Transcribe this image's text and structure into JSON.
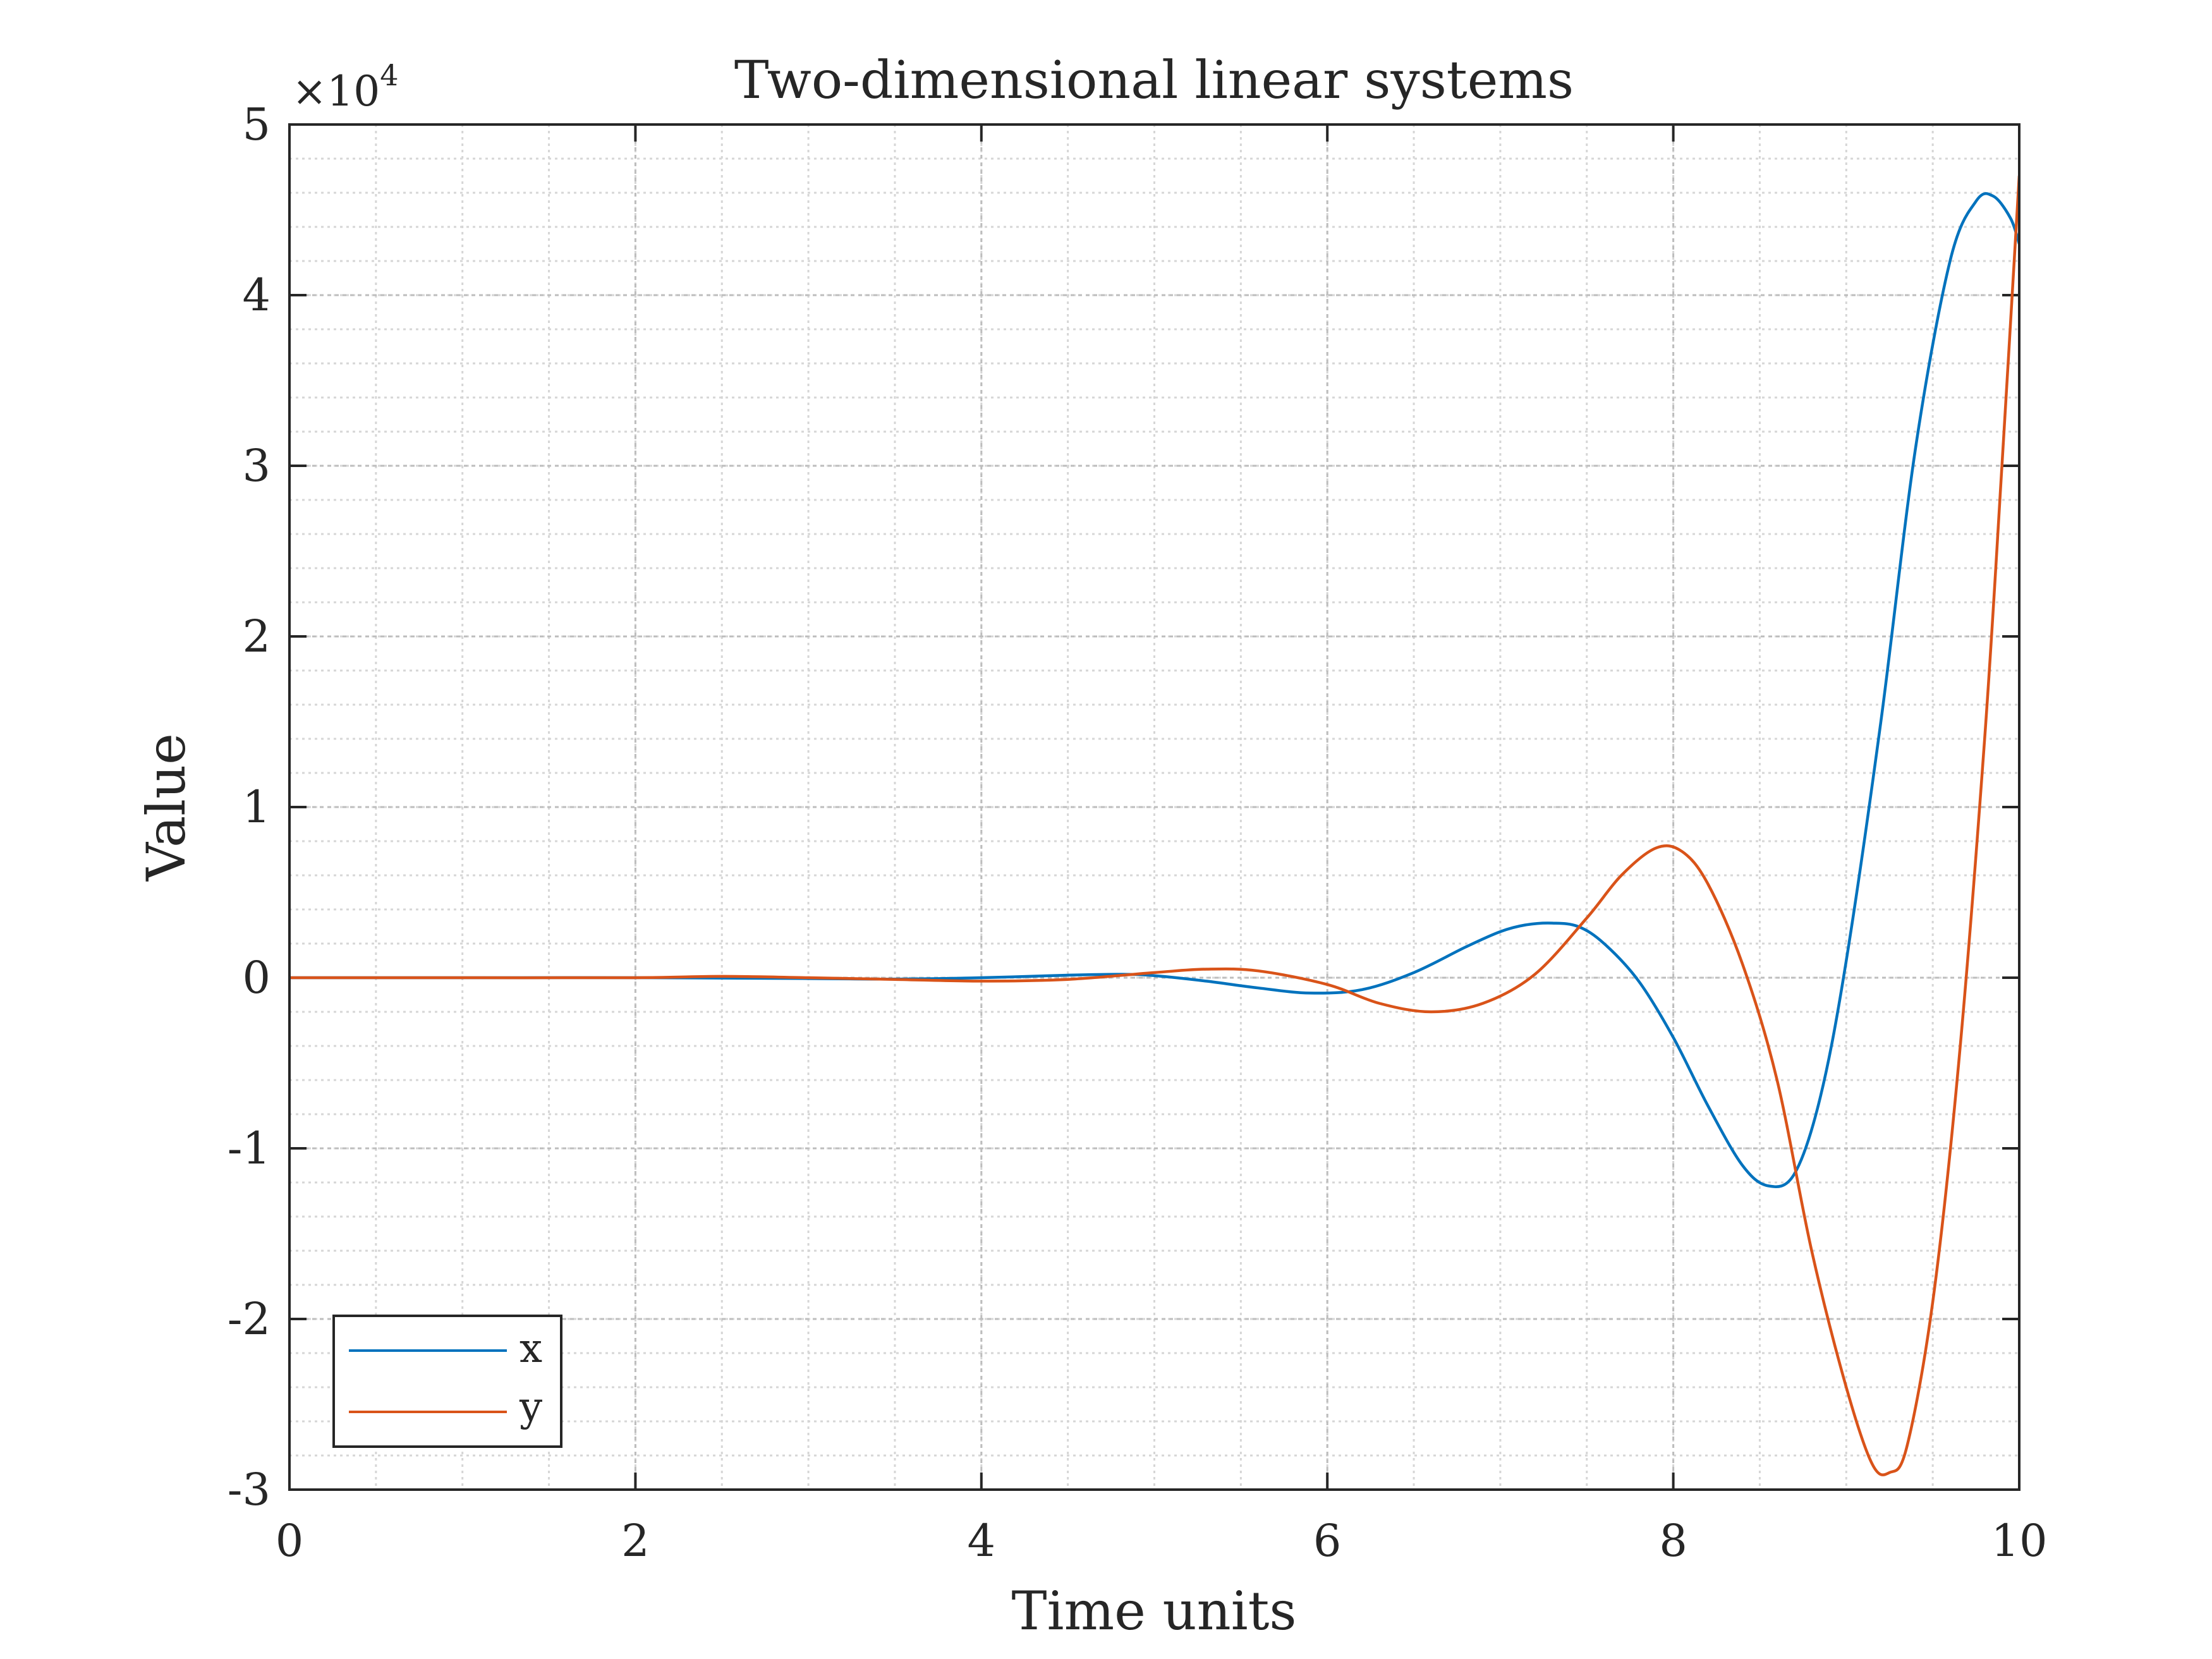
{
  "chart_data": {
    "type": "line",
    "title": "Two-dimensional linear systems",
    "xlabel": "Time units",
    "ylabel": "Value",
    "xlim": [
      0,
      10
    ],
    "ylim": [
      -30000,
      50000
    ],
    "y_multiplier": {
      "base": "×10",
      "exponent": "4"
    },
    "x_ticks": [
      0,
      2,
      4,
      6,
      8,
      10
    ],
    "x_tick_labels": [
      "0",
      "2",
      "4",
      "6",
      "8",
      "10"
    ],
    "y_ticks": [
      -30000,
      -20000,
      -10000,
      0,
      10000,
      20000,
      30000,
      40000,
      50000
    ],
    "y_tick_labels": [
      "-3",
      "-2",
      "-1",
      "0",
      "1",
      "2",
      "3",
      "4",
      "5"
    ],
    "grid": true,
    "minor_grid": true,
    "legend_position": "bottom-left",
    "series": [
      {
        "name": "x",
        "color": "#0072BD",
        "points": [
          [
            0,
            0
          ],
          [
            1,
            0
          ],
          [
            2,
            0
          ],
          [
            3,
            -50
          ],
          [
            3.5,
            -80
          ],
          [
            4,
            0
          ],
          [
            4.5,
            150
          ],
          [
            4.8,
            200
          ],
          [
            5.0,
            120
          ],
          [
            5.3,
            -200
          ],
          [
            5.6,
            -600
          ],
          [
            5.9,
            -900
          ],
          [
            6.2,
            -700
          ],
          [
            6.5,
            300
          ],
          [
            6.8,
            1800
          ],
          [
            7.0,
            2700
          ],
          [
            7.15,
            3100
          ],
          [
            7.3,
            3200
          ],
          [
            7.45,
            3000
          ],
          [
            7.6,
            2000
          ],
          [
            7.8,
            -200
          ],
          [
            8.0,
            -3500
          ],
          [
            8.2,
            -7500
          ],
          [
            8.4,
            -11000
          ],
          [
            8.55,
            -12200
          ],
          [
            8.7,
            -11500
          ],
          [
            8.85,
            -7000
          ],
          [
            9.0,
            1000
          ],
          [
            9.2,
            15000
          ],
          [
            9.4,
            31000
          ],
          [
            9.6,
            42000
          ],
          [
            9.75,
            45500
          ],
          [
            9.85,
            45800
          ],
          [
            9.95,
            44500
          ],
          [
            10.0,
            43000
          ]
        ]
      },
      {
        "name": "y",
        "color": "#D95319",
        "points": [
          [
            0,
            0
          ],
          [
            1,
            0
          ],
          [
            2,
            0
          ],
          [
            2.5,
            80
          ],
          [
            3,
            0
          ],
          [
            3.5,
            -100
          ],
          [
            4,
            -200
          ],
          [
            4.5,
            -100
          ],
          [
            5.0,
            300
          ],
          [
            5.3,
            500
          ],
          [
            5.6,
            400
          ],
          [
            6.0,
            -400
          ],
          [
            6.3,
            -1500
          ],
          [
            6.6,
            -2000
          ],
          [
            6.9,
            -1500
          ],
          [
            7.2,
            200
          ],
          [
            7.5,
            3500
          ],
          [
            7.7,
            6000
          ],
          [
            7.9,
            7600
          ],
          [
            8.05,
            7400
          ],
          [
            8.2,
            5500
          ],
          [
            8.4,
            800
          ],
          [
            8.6,
            -6000
          ],
          [
            8.8,
            -16000
          ],
          [
            9.0,
            -24000
          ],
          [
            9.15,
            -28500
          ],
          [
            9.25,
            -29000
          ],
          [
            9.35,
            -27500
          ],
          [
            9.5,
            -19000
          ],
          [
            9.65,
            -5000
          ],
          [
            9.8,
            14000
          ],
          [
            9.9,
            30000
          ],
          [
            10.0,
            47000
          ]
        ]
      }
    ]
  }
}
